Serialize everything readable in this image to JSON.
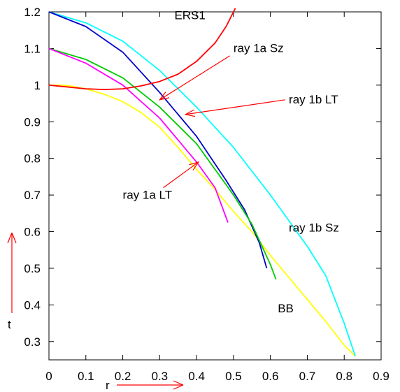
{
  "chart_data": {
    "type": "line",
    "title": "",
    "xlabel": "r",
    "ylabel": "t",
    "xlim": [
      0,
      0.9
    ],
    "ylim": [
      0.25,
      1.2
    ],
    "xticks": [
      "0",
      "0.1",
      "0.2",
      "0.3",
      "0.4",
      "0.5",
      "0.6",
      "0.7",
      "0.8",
      "0.9"
    ],
    "yticks": [
      "0.3",
      "0.4",
      "0.5",
      "0.6",
      "0.7",
      "0.8",
      "0.9",
      "1",
      "1.1",
      "1.2"
    ],
    "grid": false,
    "legend": "none",
    "series": [
      {
        "color": "#ffff00",
        "points": [
          [
            0,
            1.0
          ],
          [
            0.05,
            0.999
          ],
          [
            0.1,
            0.99
          ],
          [
            0.15,
            0.975
          ],
          [
            0.2,
            0.955
          ],
          [
            0.25,
            0.925
          ],
          [
            0.3,
            0.885
          ],
          [
            0.35,
            0.83
          ],
          [
            0.4,
            0.77
          ],
          [
            0.45,
            0.715
          ],
          [
            0.5,
            0.655
          ],
          [
            0.55,
            0.6
          ],
          [
            0.6,
            0.535
          ],
          [
            0.65,
            0.475
          ],
          [
            0.7,
            0.415
          ],
          [
            0.75,
            0.355
          ],
          [
            0.8,
            0.29
          ],
          [
            0.83,
            0.26
          ]
        ]
      },
      {
        "color": "#00ffff",
        "points": [
          [
            0,
            1.2
          ],
          [
            0.1,
            1.17
          ],
          [
            0.2,
            1.12
          ],
          [
            0.3,
            1.04
          ],
          [
            0.4,
            0.94
          ],
          [
            0.5,
            0.83
          ],
          [
            0.6,
            0.7
          ],
          [
            0.7,
            0.56
          ],
          [
            0.75,
            0.48
          ],
          [
            0.8,
            0.35
          ],
          [
            0.83,
            0.26
          ]
        ]
      },
      {
        "color": "#0000cc",
        "points": [
          [
            0,
            1.2
          ],
          [
            0.1,
            1.16
          ],
          [
            0.2,
            1.09
          ],
          [
            0.3,
            0.98
          ],
          [
            0.4,
            0.86
          ],
          [
            0.48,
            0.74
          ],
          [
            0.53,
            0.66
          ],
          [
            0.57,
            0.57
          ],
          [
            0.59,
            0.5
          ]
        ]
      },
      {
        "color": "#00cc00",
        "points": [
          [
            0,
            1.1
          ],
          [
            0.1,
            1.07
          ],
          [
            0.2,
            1.02
          ],
          [
            0.3,
            0.94
          ],
          [
            0.4,
            0.84
          ],
          [
            0.5,
            0.7
          ],
          [
            0.55,
            0.62
          ],
          [
            0.6,
            0.51
          ],
          [
            0.615,
            0.47
          ]
        ]
      },
      {
        "color": "#ff00ff",
        "points": [
          [
            0,
            1.1
          ],
          [
            0.1,
            1.06
          ],
          [
            0.2,
            1.0
          ],
          [
            0.3,
            0.91
          ],
          [
            0.4,
            0.79
          ],
          [
            0.45,
            0.72
          ],
          [
            0.485,
            0.625
          ]
        ]
      },
      {
        "color": "#ff0000",
        "points": [
          [
            0,
            1.0
          ],
          [
            0.1,
            0.99
          ],
          [
            0.15,
            0.988
          ],
          [
            0.2,
            0.99
          ],
          [
            0.25,
            0.998
          ],
          [
            0.3,
            1.01
          ],
          [
            0.35,
            1.03
          ],
          [
            0.4,
            1.065
          ],
          [
            0.45,
            1.115
          ],
          [
            0.48,
            1.16
          ],
          [
            0.5,
            1.2
          ],
          [
            0.505,
            1.21
          ]
        ]
      }
    ],
    "annotations": [
      {
        "text": "ERS1",
        "x": 0.34,
        "y": 1.18
      },
      {
        "text": "ray 1a Sz",
        "x": 0.5,
        "y": 1.09
      },
      {
        "text": "ray 1b LT",
        "x": 0.65,
        "y": 0.95
      },
      {
        "text": "ray 1a LT",
        "x": 0.2,
        "y": 0.69
      },
      {
        "text": "ray 1b Sz",
        "x": 0.65,
        "y": 0.6
      },
      {
        "text": "BB",
        "x": 0.62,
        "y": 0.38
      }
    ],
    "arrows": [
      {
        "from": [
          0.49,
          1.08
        ],
        "to": [
          0.3,
          0.96
        ]
      },
      {
        "from": [
          0.64,
          0.96
        ],
        "to": [
          0.37,
          0.92
        ]
      },
      {
        "from": [
          0.31,
          0.72
        ],
        "to": [
          0.405,
          0.79
        ]
      }
    ],
    "colors": {
      "arrow": "#ff0000",
      "axis": "#000000"
    }
  }
}
